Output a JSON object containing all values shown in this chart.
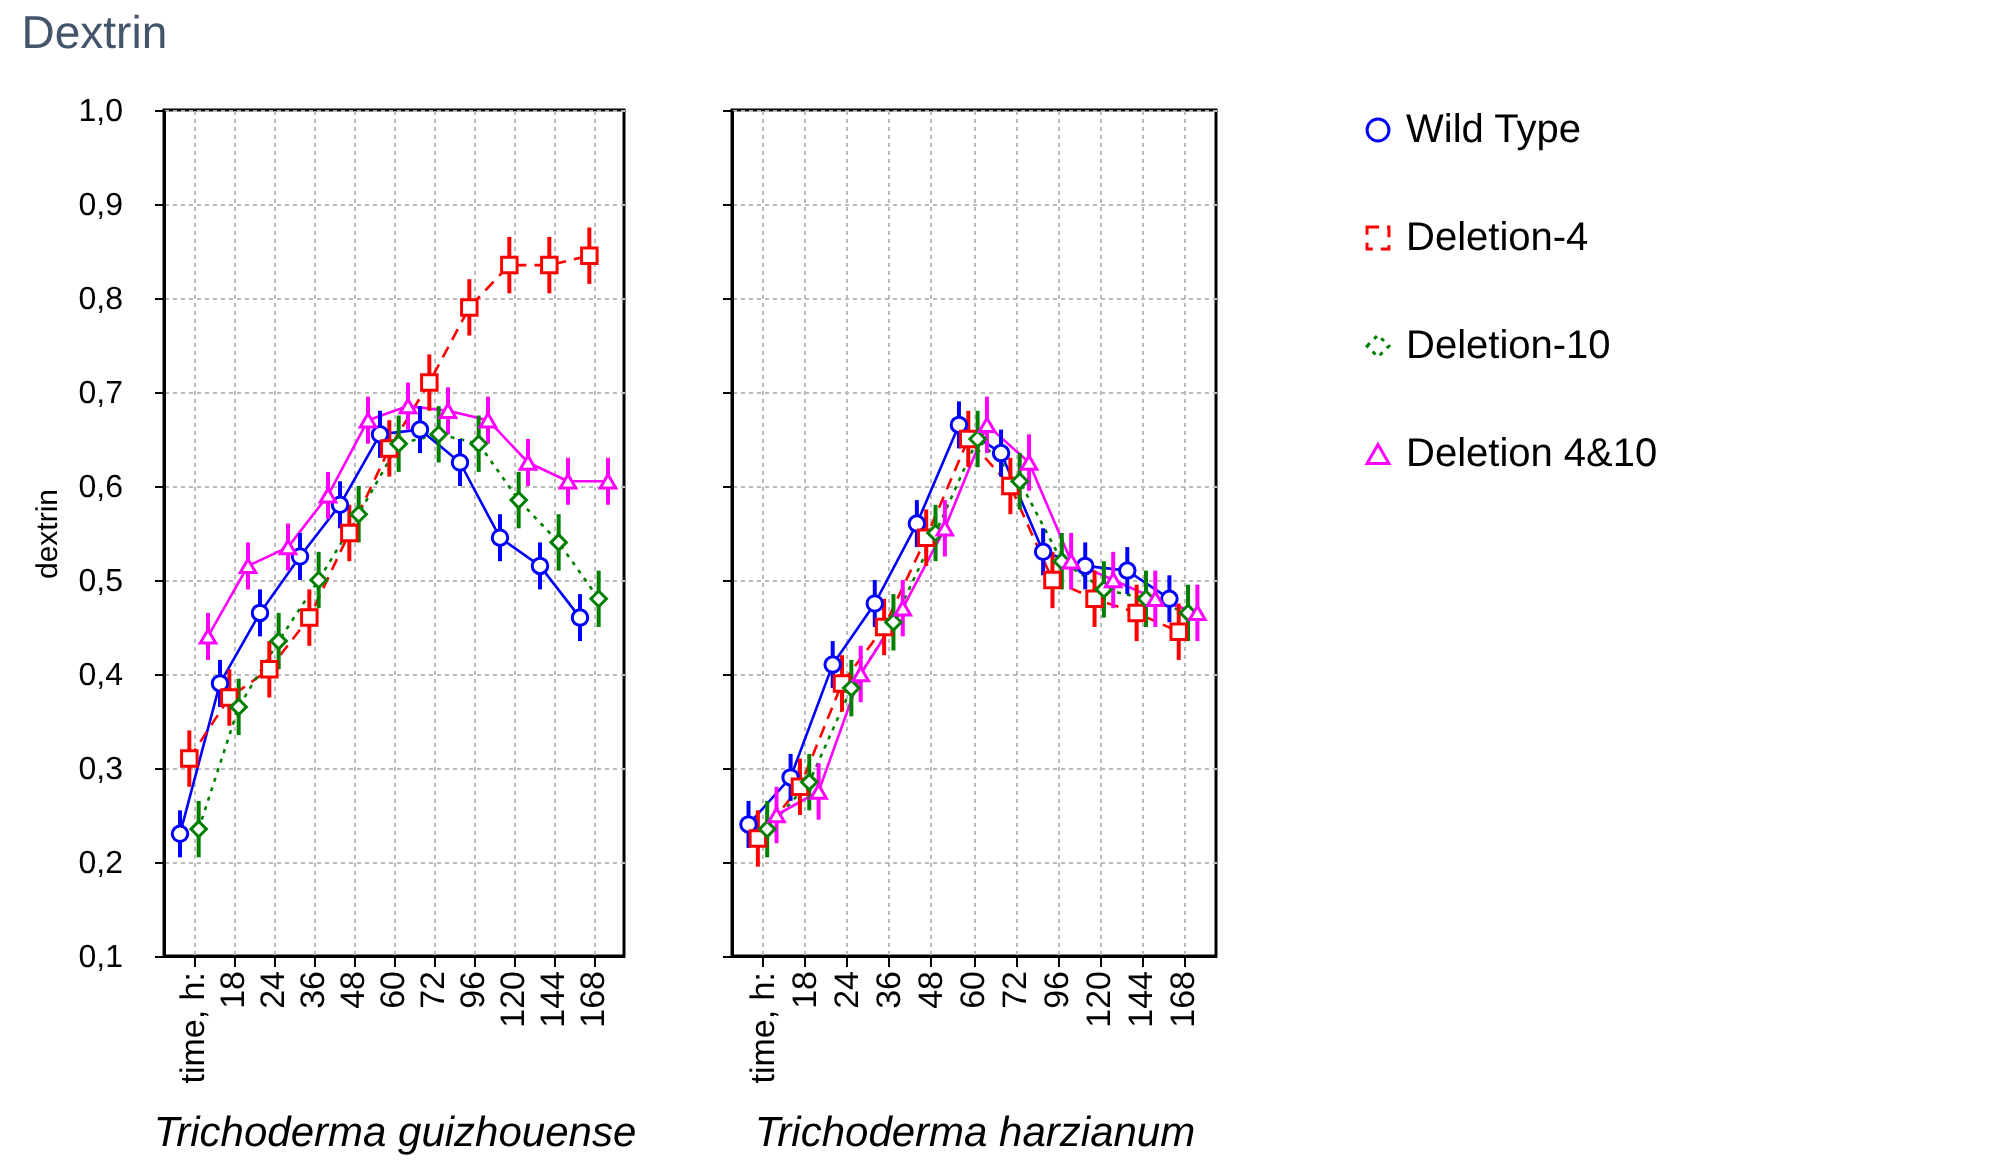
{
  "chart_data": [
    {
      "type": "line",
      "title": "Dextrin",
      "xlabel": "Trichoderma guizhouense",
      "ylabel": "dextrin",
      "annotations": [
        "time, h:"
      ],
      "categories": [
        null,
        "18",
        "24",
        "36",
        "48",
        "60",
        "72",
        "96",
        "120",
        "144",
        "168"
      ],
      "ylim": [
        0.1,
        1.0
      ],
      "yticks": [
        {
          "value": 0.1,
          "label": "0,1"
        },
        {
          "value": 0.2,
          "label": "0,2"
        },
        {
          "value": 0.3,
          "label": "0,3"
        },
        {
          "value": 0.4,
          "label": "0,4"
        },
        {
          "value": 0.5,
          "label": "0,5"
        },
        {
          "value": 0.6,
          "label": "0,6"
        },
        {
          "value": 0.7,
          "label": "0,7"
        },
        {
          "value": 0.8,
          "label": "0,8"
        },
        {
          "value": 0.9,
          "label": "0,9"
        },
        {
          "value": 1.0,
          "label": "1,0"
        }
      ],
      "grid": true,
      "legend": "right",
      "series": [
        {
          "name": "Wild Type",
          "color": "#0000ff",
          "marker": "circle",
          "line_style": "solid",
          "values": [
            0.23,
            0.39,
            0.465,
            0.525,
            0.58,
            0.655,
            0.66,
            0.625,
            0.545,
            0.515,
            0.46
          ],
          "errors": [
            0.025,
            0.025,
            0.025,
            0.025,
            0.025,
            0.025,
            0.025,
            0.025,
            0.025,
            0.025,
            0.025
          ]
        },
        {
          "name": "Deletion-4",
          "color": "#ff0000",
          "marker": "square",
          "line_style": "dashed",
          "values": [
            0.31,
            0.375,
            0.405,
            0.46,
            0.55,
            0.64,
            0.71,
            0.79,
            0.835,
            0.835,
            0.845
          ],
          "errors": [
            0.03,
            0.03,
            0.03,
            0.03,
            0.03,
            0.03,
            0.03,
            0.03,
            0.03,
            0.03,
            0.03
          ]
        },
        {
          "name": "Deletion-10",
          "color": "#008000",
          "marker": "diamond",
          "line_style": "dotted",
          "values": [
            0.235,
            0.365,
            0.435,
            0.5,
            0.57,
            0.645,
            0.655,
            0.645,
            0.585,
            0.54,
            0.48
          ],
          "errors": [
            0.03,
            0.03,
            0.03,
            0.03,
            0.03,
            0.03,
            0.03,
            0.03,
            0.03,
            0.03,
            0.03
          ]
        },
        {
          "name": "Deletion 4&10",
          "color": "#ff00ff",
          "marker": "triangle",
          "line_style": "solid",
          "values": [
            0.44,
            0.515,
            0.535,
            0.59,
            0.67,
            0.685,
            0.68,
            0.67,
            0.625,
            0.605,
            0.605
          ],
          "errors": [
            0.025,
            0.025,
            0.025,
            0.025,
            0.025,
            0.025,
            0.025,
            0.025,
            0.025,
            0.025,
            0.025
          ]
        }
      ]
    },
    {
      "type": "line",
      "xlabel": "Trichoderma harzianum",
      "annotations": [
        "time, h:"
      ],
      "categories": [
        null,
        "18",
        "24",
        "36",
        "48",
        "60",
        "72",
        "96",
        "120",
        "144",
        "168"
      ],
      "ylim": [
        0.1,
        1.0
      ],
      "yticks": [
        0.1,
        0.2,
        0.3,
        0.4,
        0.5,
        0.6,
        0.7,
        0.8,
        0.9,
        1.0
      ],
      "grid": true,
      "tick_labels": "x",
      "legend": "right",
      "series": [
        {
          "name": "Wild Type",
          "color": "#0000ff",
          "marker": "circle",
          "line_style": "solid",
          "values": [
            0.24,
            0.29,
            0.41,
            0.475,
            0.56,
            0.665,
            0.635,
            0.53,
            0.515,
            0.51,
            0.48
          ],
          "errors": [
            0.025,
            0.025,
            0.025,
            0.025,
            0.025,
            0.025,
            0.025,
            0.025,
            0.025,
            0.025,
            0.025
          ]
        },
        {
          "name": "Deletion-4",
          "color": "#ff0000",
          "marker": "square",
          "line_style": "dashed",
          "values": [
            0.225,
            0.28,
            0.39,
            0.45,
            0.545,
            0.65,
            0.6,
            0.5,
            0.48,
            0.465,
            0.445
          ],
          "errors": [
            0.03,
            0.03,
            0.03,
            0.03,
            0.03,
            0.03,
            0.03,
            0.03,
            0.03,
            0.03,
            0.03
          ]
        },
        {
          "name": "Deletion-10",
          "color": "#008000",
          "marker": "diamond",
          "line_style": "dotted",
          "values": [
            0.235,
            0.285,
            0.385,
            0.455,
            0.55,
            0.65,
            0.605,
            0.52,
            0.49,
            0.48,
            0.465
          ],
          "errors": [
            0.03,
            0.03,
            0.03,
            0.03,
            0.03,
            0.03,
            0.03,
            0.03,
            0.03,
            0.03,
            0.03
          ]
        },
        {
          "name": "Deletion 4&10",
          "color": "#ff00ff",
          "marker": "triangle",
          "line_style": "solid",
          "values": [
            0.25,
            0.275,
            0.4,
            0.47,
            0.555,
            0.665,
            0.625,
            0.52,
            0.5,
            0.48,
            0.465
          ],
          "errors": [
            0.03,
            0.03,
            0.03,
            0.03,
            0.03,
            0.03,
            0.03,
            0.03,
            0.03,
            0.03,
            0.03
          ]
        }
      ]
    }
  ]
}
